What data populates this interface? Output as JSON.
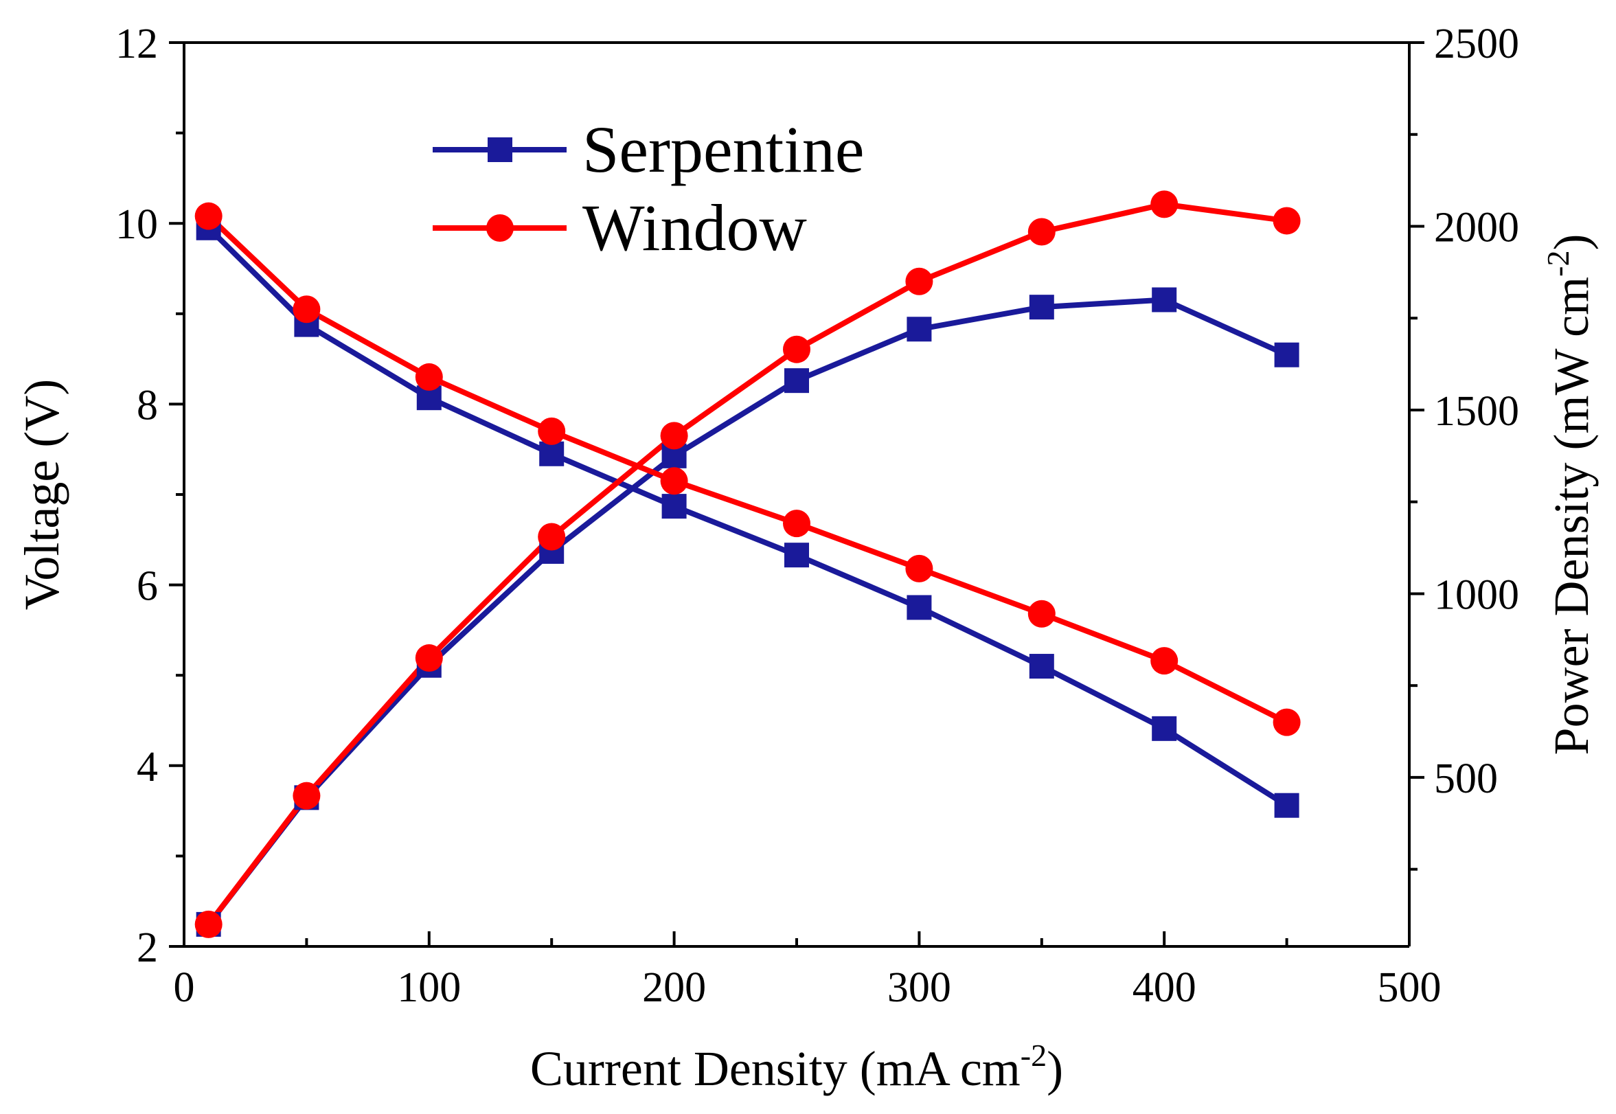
{
  "chart_data": {
    "type": "line",
    "x": [
      10,
      50,
      100,
      150,
      200,
      250,
      300,
      350,
      400,
      450
    ],
    "x_axis": {
      "label": "Current Density (mA cm",
      "label_sup": "-2",
      "label_close": ")",
      "range": [
        0,
        500
      ],
      "ticks": [
        0,
        100,
        200,
        300,
        400,
        500
      ],
      "tick_labels": [
        "0",
        "100",
        "200",
        "300",
        "400",
        "500"
      ]
    },
    "y_left_axis": {
      "label": "Voltage (V)",
      "range": [
        2,
        12
      ],
      "ticks": [
        2,
        4,
        6,
        8,
        10,
        12
      ],
      "tick_labels": [
        "2",
        "4",
        "6",
        "8",
        "10",
        "12"
      ]
    },
    "y_right_axis": {
      "label": "Power Density (mW cm",
      "label_sup": "-2",
      "label_close": ")",
      "range": [
        40,
        2500
      ],
      "ticks": [
        500,
        1000,
        1500,
        2000,
        2500
      ],
      "tick_labels": [
        "500",
        "1000",
        "1500",
        "2000",
        "2500"
      ]
    },
    "series": [
      {
        "name": "Serpentine",
        "color": "#1a1a9a",
        "marker": "square",
        "voltage": [
          9.95,
          8.88,
          8.07,
          7.45,
          6.87,
          6.33,
          5.75,
          5.1,
          4.41,
          3.56
        ],
        "power_density": [
          100,
          445,
          805,
          1115,
          1375,
          1580,
          1720,
          1780,
          1800,
          1650
        ]
      },
      {
        "name": "Window",
        "color": "#ff0000",
        "marker": "circle",
        "voltage": [
          10.08,
          9.05,
          8.3,
          7.7,
          7.15,
          6.68,
          6.18,
          5.68,
          5.16,
          4.48
        ],
        "power_density": [
          100,
          450,
          825,
          1155,
          1430,
          1665,
          1850,
          1985,
          2060,
          2015
        ]
      }
    ],
    "legend": {
      "position": "top-left",
      "entries": [
        "Serpentine",
        "Window"
      ]
    },
    "grid": false
  }
}
